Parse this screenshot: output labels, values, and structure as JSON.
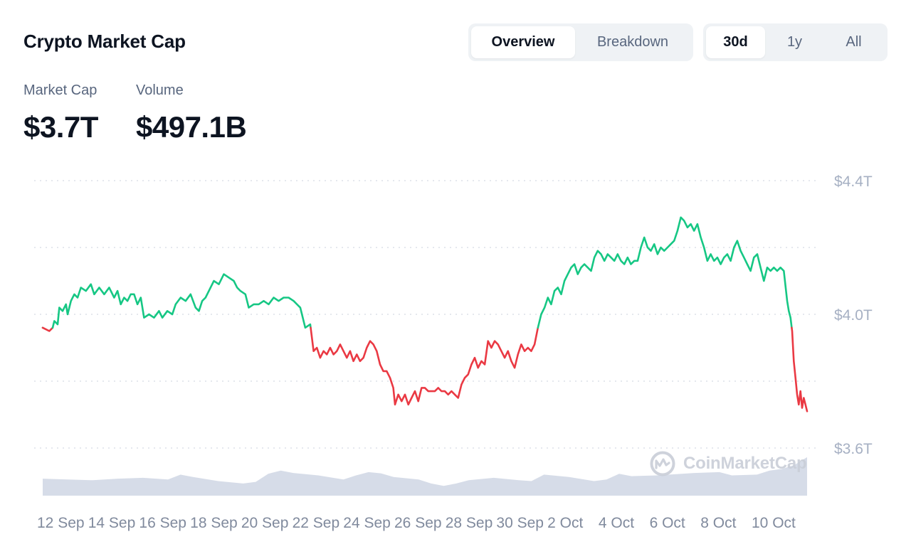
{
  "header": {
    "title": "Crypto Market Cap"
  },
  "view_tabs": [
    {
      "label": "Overview",
      "active": true
    },
    {
      "label": "Breakdown",
      "active": false
    }
  ],
  "range_tabs": [
    {
      "label": "30d",
      "active": true
    },
    {
      "label": "1y",
      "active": false
    },
    {
      "label": "All",
      "active": false
    }
  ],
  "stats": {
    "market_cap": {
      "label": "Market Cap",
      "value": "$3.7T"
    },
    "volume": {
      "label": "Volume",
      "value": "$497.1B"
    }
  },
  "watermark": {
    "text": "CoinMarketCap",
    "icon": "coinmarketcap-logo-icon"
  },
  "colors": {
    "up": "#16c784",
    "down": "#ea3943",
    "volume": "#cfd6e4",
    "grid": "#d5dae3",
    "axis_text": "#808a9d"
  },
  "chart_data": {
    "type": "line",
    "xlabel": "",
    "ylabel": "",
    "x_tick_labels": [
      "12 Sep",
      "14 Sep",
      "16 Sep",
      "18 Sep",
      "20 Sep",
      "22 Sep",
      "24 Sep",
      "26 Sep",
      "28 Sep",
      "30 Sep",
      "2 Oct",
      "4 Oct",
      "6 Oct",
      "8 Oct",
      "10 Oct"
    ],
    "y_ticks": [
      {
        "value": 4.4,
        "label": "$4.4T"
      },
      {
        "value": 4.0,
        "label": "$4.0T"
      },
      {
        "value": 3.6,
        "label": "$3.6T"
      }
    ],
    "ylim": [
      3.6,
      4.4
    ],
    "x_range_days": [
      0,
      30.3
    ],
    "baseline": 3.96,
    "unit": "trillion USD",
    "series": [
      {
        "values": [
          [
            0.0,
            3.96
          ],
          [
            0.4,
            3.95
          ],
          [
            0.6,
            3.96
          ],
          [
            0.7,
            3.98
          ],
          [
            0.9,
            3.97
          ],
          [
            1.0,
            4.02
          ],
          [
            1.2,
            4.01
          ],
          [
            1.4,
            4.03
          ],
          [
            1.5,
            4.0
          ],
          [
            1.7,
            4.04
          ],
          [
            1.9,
            4.06
          ],
          [
            2.1,
            4.05
          ],
          [
            2.3,
            4.08
          ],
          [
            2.6,
            4.07
          ],
          [
            2.9,
            4.09
          ],
          [
            3.1,
            4.06
          ],
          [
            3.4,
            4.08
          ],
          [
            3.7,
            4.06
          ],
          [
            4.0,
            4.08
          ],
          [
            4.3,
            4.05
          ],
          [
            4.5,
            4.07
          ],
          [
            4.7,
            4.03
          ],
          [
            4.9,
            4.05
          ],
          [
            5.1,
            4.04
          ],
          [
            5.3,
            4.06
          ],
          [
            5.5,
            4.06
          ],
          [
            5.7,
            4.03
          ],
          [
            5.9,
            4.05
          ],
          [
            6.1,
            3.99
          ],
          [
            6.4,
            4.0
          ],
          [
            6.7,
            3.99
          ],
          [
            7.0,
            4.01
          ],
          [
            7.2,
            3.99
          ],
          [
            7.5,
            4.01
          ],
          [
            7.8,
            4.0
          ],
          [
            8.0,
            4.03
          ],
          [
            8.3,
            4.05
          ],
          [
            8.6,
            4.04
          ],
          [
            8.9,
            4.06
          ],
          [
            9.2,
            4.02
          ],
          [
            9.4,
            4.01
          ],
          [
            9.6,
            4.04
          ],
          [
            9.8,
            4.05
          ],
          [
            10.0,
            4.07
          ],
          [
            10.3,
            4.1
          ],
          [
            10.6,
            4.09
          ],
          [
            10.9,
            4.12
          ],
          [
            11.2,
            4.11
          ],
          [
            11.5,
            4.1
          ],
          [
            11.7,
            4.08
          ],
          [
            11.9,
            4.07
          ],
          [
            12.2,
            4.06
          ],
          [
            12.4,
            4.02
          ],
          [
            12.7,
            4.03
          ],
          [
            13.0,
            4.03
          ],
          [
            13.3,
            4.04
          ],
          [
            13.6,
            4.03
          ],
          [
            13.9,
            4.05
          ],
          [
            14.2,
            4.04
          ],
          [
            14.5,
            4.05
          ],
          [
            14.8,
            4.05
          ],
          [
            15.1,
            4.04
          ],
          [
            15.3,
            4.03
          ],
          [
            15.5,
            4.02
          ],
          [
            15.8,
            3.96
          ],
          [
            16.1,
            3.97
          ],
          [
            16.3,
            3.89
          ],
          [
            16.5,
            3.9
          ],
          [
            16.7,
            3.87
          ],
          [
            16.9,
            3.89
          ],
          [
            17.1,
            3.88
          ],
          [
            17.3,
            3.9
          ],
          [
            17.5,
            3.88
          ],
          [
            17.7,
            3.89
          ],
          [
            17.9,
            3.91
          ],
          [
            18.1,
            3.89
          ],
          [
            18.3,
            3.87
          ],
          [
            18.5,
            3.89
          ],
          [
            18.7,
            3.86
          ],
          [
            18.9,
            3.88
          ],
          [
            19.1,
            3.86
          ],
          [
            19.3,
            3.87
          ],
          [
            19.5,
            3.9
          ],
          [
            19.7,
            3.92
          ],
          [
            19.9,
            3.91
          ],
          [
            20.1,
            3.89
          ],
          [
            20.3,
            3.85
          ],
          [
            20.5,
            3.83
          ],
          [
            20.7,
            3.83
          ],
          [
            20.9,
            3.81
          ],
          [
            21.1,
            3.78
          ],
          [
            21.2,
            3.73
          ],
          [
            21.4,
            3.76
          ],
          [
            21.6,
            3.74
          ],
          [
            21.8,
            3.76
          ],
          [
            22.0,
            3.73
          ],
          [
            22.2,
            3.75
          ],
          [
            22.4,
            3.77
          ],
          [
            22.6,
            3.74
          ],
          [
            22.8,
            3.78
          ],
          [
            23.0,
            3.78
          ],
          [
            23.2,
            3.77
          ],
          [
            23.4,
            3.77
          ],
          [
            23.6,
            3.77
          ],
          [
            23.8,
            3.78
          ],
          [
            24.0,
            3.77
          ],
          [
            24.2,
            3.77
          ],
          [
            24.4,
            3.76
          ],
          [
            24.6,
            3.77
          ],
          [
            24.8,
            3.76
          ],
          [
            25.0,
            3.75
          ],
          [
            25.2,
            3.79
          ],
          [
            25.4,
            3.81
          ],
          [
            25.6,
            3.82
          ],
          [
            25.8,
            3.85
          ],
          [
            26.0,
            3.87
          ],
          [
            26.2,
            3.84
          ],
          [
            26.4,
            3.86
          ],
          [
            26.6,
            3.85
          ],
          [
            26.8,
            3.92
          ],
          [
            27.0,
            3.9
          ],
          [
            27.2,
            3.92
          ],
          [
            27.4,
            3.91
          ],
          [
            27.6,
            3.89
          ],
          [
            27.8,
            3.87
          ],
          [
            28.0,
            3.89
          ],
          [
            28.2,
            3.86
          ],
          [
            28.4,
            3.84
          ],
          [
            28.6,
            3.88
          ],
          [
            28.8,
            3.91
          ],
          [
            29.0,
            3.89
          ],
          [
            29.2,
            3.9
          ],
          [
            29.4,
            3.89
          ],
          [
            29.6,
            3.91
          ],
          [
            29.8,
            3.96
          ],
          [
            30.0,
            4.0
          ],
          [
            30.2,
            4.02
          ],
          [
            30.4,
            4.05
          ],
          [
            30.6,
            4.03
          ],
          [
            30.8,
            4.07
          ],
          [
            31.0,
            4.08
          ],
          [
            31.2,
            4.06
          ],
          [
            31.4,
            4.1
          ],
          [
            31.6,
            4.12
          ],
          [
            31.8,
            4.14
          ],
          [
            32.0,
            4.15
          ],
          [
            32.2,
            4.12
          ],
          [
            32.4,
            4.14
          ],
          [
            32.6,
            4.15
          ],
          [
            32.8,
            4.14
          ],
          [
            33.0,
            4.13
          ],
          [
            33.2,
            4.17
          ],
          [
            33.4,
            4.19
          ],
          [
            33.6,
            4.18
          ],
          [
            33.8,
            4.16
          ],
          [
            34.0,
            4.18
          ],
          [
            34.2,
            4.17
          ],
          [
            34.4,
            4.16
          ],
          [
            34.6,
            4.18
          ],
          [
            34.8,
            4.16
          ],
          [
            35.0,
            4.15
          ],
          [
            35.2,
            4.17
          ],
          [
            35.4,
            4.15
          ],
          [
            35.6,
            4.16
          ],
          [
            35.8,
            4.16
          ],
          [
            36.0,
            4.2
          ],
          [
            36.2,
            4.23
          ],
          [
            36.4,
            4.2
          ],
          [
            36.6,
            4.19
          ],
          [
            36.8,
            4.21
          ],
          [
            37.0,
            4.18
          ],
          [
            37.2,
            4.2
          ],
          [
            37.4,
            4.19
          ],
          [
            37.6,
            4.2
          ],
          [
            37.8,
            4.21
          ],
          [
            38.0,
            4.22
          ],
          [
            38.2,
            4.25
          ],
          [
            38.4,
            4.29
          ],
          [
            38.6,
            4.28
          ],
          [
            38.8,
            4.26
          ],
          [
            39.0,
            4.27
          ],
          [
            39.2,
            4.25
          ],
          [
            39.4,
            4.27
          ],
          [
            39.6,
            4.23
          ],
          [
            39.8,
            4.2
          ],
          [
            40.0,
            4.16
          ],
          [
            40.2,
            4.18
          ],
          [
            40.4,
            4.16
          ],
          [
            40.6,
            4.17
          ],
          [
            40.8,
            4.15
          ],
          [
            41.0,
            4.17
          ],
          [
            41.2,
            4.18
          ],
          [
            41.4,
            4.16
          ],
          [
            41.6,
            4.2
          ],
          [
            41.8,
            4.22
          ],
          [
            42.0,
            4.19
          ],
          [
            42.2,
            4.17
          ],
          [
            42.4,
            4.15
          ],
          [
            42.6,
            4.13
          ],
          [
            42.8,
            4.17
          ],
          [
            43.0,
            4.18
          ],
          [
            43.2,
            4.14
          ],
          [
            43.4,
            4.1
          ],
          [
            43.6,
            4.14
          ],
          [
            43.8,
            4.13
          ],
          [
            44.0,
            4.14
          ],
          [
            44.2,
            4.13
          ],
          [
            44.4,
            4.14
          ],
          [
            44.6,
            4.13
          ],
          [
            44.8,
            4.04
          ],
          [
            44.9,
            4.01
          ],
          [
            45.0,
            3.99
          ],
          [
            45.1,
            3.95
          ],
          [
            45.2,
            3.86
          ],
          [
            45.3,
            3.81
          ],
          [
            45.4,
            3.76
          ],
          [
            45.5,
            3.73
          ],
          [
            45.6,
            3.77
          ],
          [
            45.7,
            3.72
          ],
          [
            45.8,
            3.75
          ],
          [
            45.9,
            3.73
          ],
          [
            46.0,
            3.71
          ]
        ]
      }
    ],
    "volume_series": [
      [
        0,
        0.42
      ],
      [
        2,
        0.4
      ],
      [
        4,
        0.38
      ],
      [
        6,
        0.42
      ],
      [
        8,
        0.44
      ],
      [
        10,
        0.4
      ],
      [
        11,
        0.52
      ],
      [
        12,
        0.46
      ],
      [
        14,
        0.36
      ],
      [
        16,
        0.3
      ],
      [
        17,
        0.34
      ],
      [
        18,
        0.54
      ],
      [
        19,
        0.62
      ],
      [
        20,
        0.56
      ],
      [
        22,
        0.5
      ],
      [
        24,
        0.4
      ],
      [
        25,
        0.5
      ],
      [
        26,
        0.58
      ],
      [
        27,
        0.55
      ],
      [
        28,
        0.46
      ],
      [
        30,
        0.4
      ],
      [
        31,
        0.3
      ],
      [
        32,
        0.24
      ],
      [
        33,
        0.3
      ],
      [
        34,
        0.38
      ],
      [
        36,
        0.44
      ],
      [
        38,
        0.38
      ],
      [
        39,
        0.36
      ],
      [
        40,
        0.52
      ],
      [
        42,
        0.46
      ],
      [
        44,
        0.36
      ],
      [
        45,
        0.4
      ],
      [
        46,
        0.54
      ],
      [
        47,
        0.48
      ],
      [
        49,
        0.5
      ],
      [
        50,
        0.52
      ],
      [
        52,
        0.56
      ],
      [
        54,
        0.58
      ],
      [
        55,
        0.5
      ],
      [
        57,
        0.52
      ],
      [
        58,
        0.62
      ],
      [
        59,
        0.66
      ],
      [
        60,
        0.76
      ],
      [
        61,
        0.95
      ]
    ]
  }
}
